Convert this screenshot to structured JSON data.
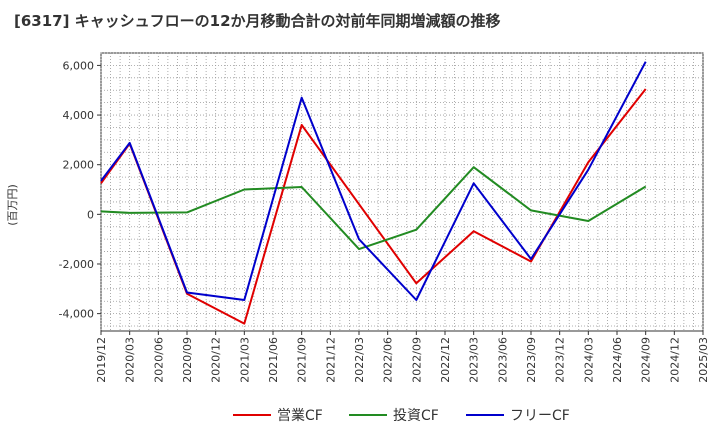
{
  "chart_data": {
    "type": "line",
    "title": "[6317]  キャッシュフローの12か月移動合計の対前年同期増減額の推移",
    "ylabel": "(百万円)",
    "xlabel": "",
    "ylim": [
      -4700,
      6500
    ],
    "y_ticks": [
      6000,
      4000,
      2000,
      0,
      -2000,
      -4000
    ],
    "y_tick_labels": [
      "6,000",
      "4,000",
      "2,000",
      "0",
      "-2,000",
      "-4,000"
    ],
    "x_labels": [
      "2019/12",
      "2020/03",
      "2020/06",
      "2020/09",
      "2020/12",
      "2021/03",
      "2021/06",
      "2021/09",
      "2021/12",
      "2022/03",
      "2022/06",
      "2022/09",
      "2022/12",
      "2023/03",
      "2023/06",
      "2023/09",
      "2023/12",
      "2024/03",
      "2024/06",
      "2024/09",
      "2024/12",
      "2025/03"
    ],
    "grid": true,
    "legend_position": "bottom",
    "series": [
      {
        "name": "営業CF",
        "color": "#e00000",
        "points": [
          [
            0,
            1250
          ],
          [
            1,
            2850
          ],
          [
            3,
            -3200
          ],
          [
            5,
            -4400
          ],
          [
            7,
            3600
          ],
          [
            11,
            -2780
          ],
          [
            13,
            -680
          ],
          [
            15,
            -1900
          ],
          [
            17,
            2100
          ],
          [
            19,
            5050
          ]
        ]
      },
      {
        "name": "投資CF",
        "color": "#228b22",
        "points": [
          [
            0,
            120
          ],
          [
            1,
            60
          ],
          [
            3,
            80
          ],
          [
            5,
            1000
          ],
          [
            7,
            1100
          ],
          [
            9,
            -1400
          ],
          [
            11,
            -620
          ],
          [
            13,
            1900
          ],
          [
            15,
            160
          ],
          [
            17,
            -270
          ],
          [
            19,
            1120
          ]
        ]
      },
      {
        "name": "フリーCF",
        "color": "#0000cc",
        "points": [
          [
            0,
            1350
          ],
          [
            1,
            2880
          ],
          [
            3,
            -3150
          ],
          [
            5,
            -3450
          ],
          [
            7,
            4700
          ],
          [
            9,
            -1000
          ],
          [
            11,
            -3450
          ],
          [
            13,
            1250
          ],
          [
            15,
            -1800
          ],
          [
            17,
            1800
          ],
          [
            19,
            6150
          ]
        ]
      }
    ]
  }
}
